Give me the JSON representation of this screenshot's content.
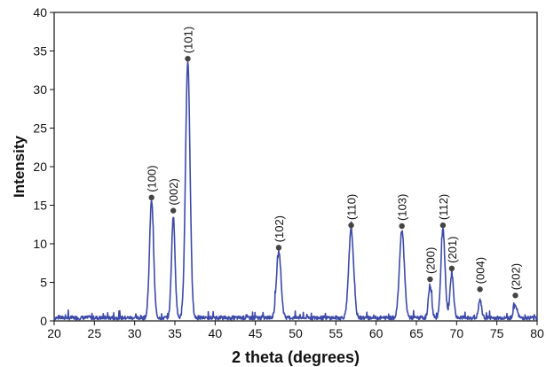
{
  "chart_data": {
    "type": "line",
    "title": "",
    "xlabel": "2 theta (degrees)",
    "ylabel": "Intensity",
    "xlim": [
      20,
      80
    ],
    "ylim": [
      0,
      40
    ],
    "xticks": [
      20,
      25,
      30,
      35,
      40,
      45,
      50,
      55,
      60,
      65,
      70,
      75,
      80
    ],
    "yticks": [
      0,
      5,
      10,
      15,
      20,
      25,
      30,
      35,
      40
    ],
    "grid": false,
    "legend": "none",
    "series": [
      {
        "color": "#3d4aa8",
        "peaks": [
          {
            "x": 32.1,
            "y": 15.2,
            "width": 0.25
          },
          {
            "x": 34.8,
            "y": 13.1,
            "width": 0.22
          },
          {
            "x": 36.6,
            "y": 33.3,
            "width": 0.28
          },
          {
            "x": 47.9,
            "y": 8.6,
            "width": 0.28
          },
          {
            "x": 56.9,
            "y": 11.5,
            "width": 0.3
          },
          {
            "x": 63.2,
            "y": 11.4,
            "width": 0.3
          },
          {
            "x": 66.7,
            "y": 4.3,
            "width": 0.2
          },
          {
            "x": 68.3,
            "y": 11.5,
            "width": 0.25
          },
          {
            "x": 69.4,
            "y": 5.7,
            "width": 0.22
          },
          {
            "x": 72.9,
            "y": 2.3,
            "width": 0.18
          },
          {
            "x": 77.3,
            "y": 1.7,
            "width": 0.22
          }
        ],
        "baseline": 0.4
      }
    ],
    "annotations": [
      {
        "text": "(100)",
        "x": 32.1,
        "y": 16.0
      },
      {
        "text": "(002)",
        "x": 34.8,
        "y": 14.3
      },
      {
        "text": "(101)",
        "x": 36.6,
        "y": 34.0
      },
      {
        "text": "(102)",
        "x": 47.9,
        "y": 9.5
      },
      {
        "text": "(110)",
        "x": 56.9,
        "y": 12.4
      },
      {
        "text": "(103)",
        "x": 63.2,
        "y": 12.3
      },
      {
        "text": "(200)",
        "x": 66.7,
        "y": 5.4
      },
      {
        "text": "(112)",
        "x": 68.3,
        "y": 12.4
      },
      {
        "text": "(201)",
        "x": 69.4,
        "y": 6.8
      },
      {
        "text": "(004)",
        "x": 72.9,
        "y": 4.1
      },
      {
        "text": "(202)",
        "x": 77.3,
        "y": 3.3
      }
    ],
    "marker_color": "#444444"
  }
}
